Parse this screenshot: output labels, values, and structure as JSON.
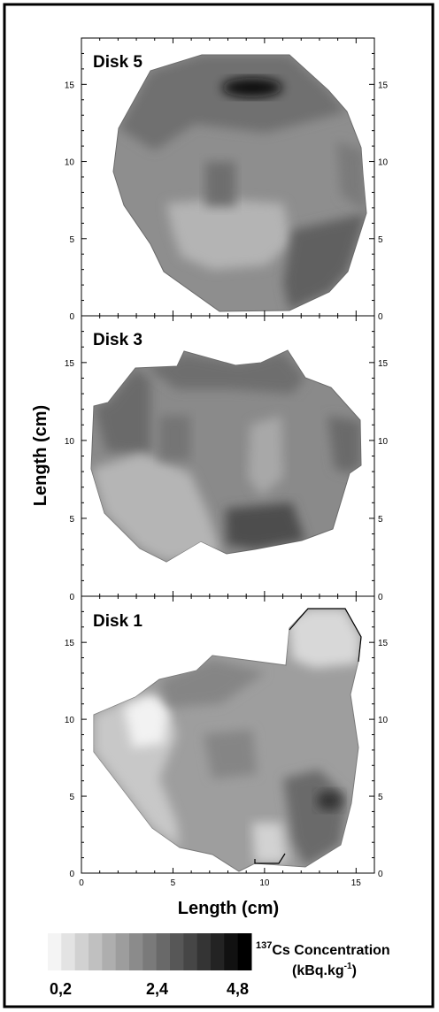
{
  "chart_data": [
    {
      "type": "heatmap",
      "panel": "Disk 5",
      "ylim": [
        0,
        18
      ],
      "xlim": [
        0,
        16
      ],
      "y_ticks": [
        "0",
        "5",
        "10",
        "15"
      ],
      "right_ticks": [
        "0",
        "5",
        "10",
        "15"
      ],
      "patches": [
        {
          "x": 8,
          "y": 9,
          "shade": 0.35
        },
        {
          "x": 8.5,
          "y": 5.5,
          "shade": 0.25
        },
        {
          "x": 10,
          "y": 16.5,
          "shade": 0.95
        },
        {
          "x": 14.5,
          "y": 3.5,
          "shade": 0.7
        }
      ]
    },
    {
      "type": "heatmap",
      "panel": "Disk 3",
      "ylim": [
        0,
        18
      ],
      "xlim": [
        0,
        16
      ],
      "y_ticks": [
        "0",
        "5",
        "10",
        "15"
      ],
      "right_ticks": [
        "0",
        "5",
        "10",
        "15"
      ],
      "patches": [
        {
          "x": 3,
          "y": 7,
          "shade": 0.25
        },
        {
          "x": 12,
          "y": 5.5,
          "shade": 0.75
        },
        {
          "x": 2,
          "y": 13,
          "shade": 0.65
        },
        {
          "x": 15,
          "y": 12,
          "shade": 0.65
        }
      ]
    },
    {
      "type": "heatmap",
      "panel": "Disk 1",
      "ylim": [
        0,
        18
      ],
      "xlim": [
        0,
        16
      ],
      "x_ticks": [
        "0",
        "5",
        "10",
        "15"
      ],
      "y_ticks": [
        "0",
        "5",
        "10",
        "15"
      ],
      "right_ticks": [
        "0",
        "5",
        "10",
        "15"
      ],
      "patches": [
        {
          "x": 3,
          "y": 10.5,
          "shade": 0.05
        },
        {
          "x": 13.5,
          "y": 5.5,
          "shade": 0.8
        },
        {
          "x": 13.5,
          "y": 18,
          "shade": 0.15
        },
        {
          "x": 10,
          "y": 2,
          "shade": 0.15
        }
      ]
    }
  ],
  "axes": {
    "xlabel": "Length (cm)",
    "ylabel": "Length (cm)"
  },
  "legend": {
    "title_superscript": "137",
    "title_main": "Cs Concentration",
    "unit_main": "(kBq.kg",
    "unit_superscript": "-1",
    "unit_close": ")",
    "ticks": [
      "0,2",
      "2,4",
      "4,8"
    ],
    "scale": [
      0.2,
      2.4,
      4.8
    ]
  }
}
